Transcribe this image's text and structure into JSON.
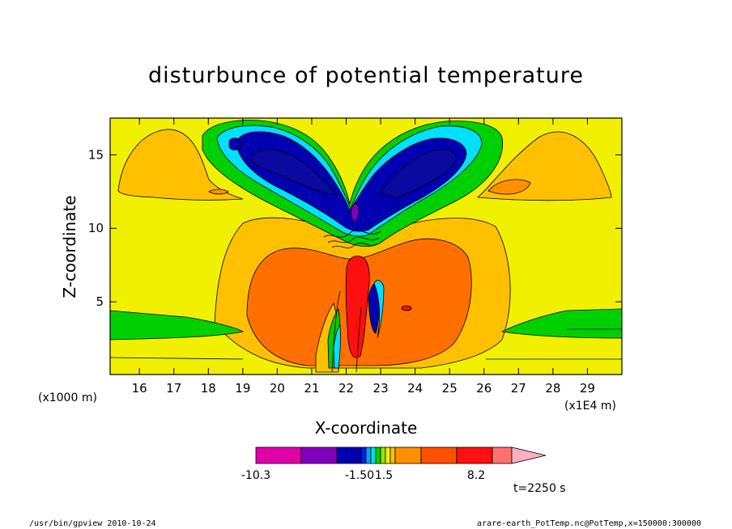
{
  "chart_data": {
    "type": "heatmap",
    "title": "disturbunce of potential temperature",
    "xlabel": "X-coordinate",
    "ylabel": "Z-coordinate",
    "x_unit": "(x1E4 m)",
    "y_unit": "(x1000 m)",
    "xlim": [
      15.15,
      30
    ],
    "ylim": [
      0.05,
      17.5
    ],
    "x_ticks": [
      16,
      17,
      18,
      19,
      20,
      21,
      22,
      23,
      24,
      25,
      26,
      27,
      28,
      29
    ],
    "y_ticks": [
      5,
      10,
      15
    ],
    "colorbar": {
      "tick_labels": [
        "-10.3",
        "-1.50",
        "1.5",
        "8.2"
      ],
      "tick_values": [
        -10.3,
        -1.5,
        1.5,
        8.2
      ],
      "colors": [
        "#e000a8",
        "#8000c0",
        "#0000b0",
        "#0020e0",
        "#00a0ff",
        "#00e0e0",
        "#00d000",
        "#a0e000",
        "#f0f000",
        "#ffc000",
        "#ff9000",
        "#ff5000",
        "#ff1010",
        "#ff7070",
        "#ffb0c0"
      ]
    },
    "colors": {
      "background": "#f0f000",
      "light_orange": "#ffc000",
      "orange": "#ff7000",
      "red": "#ff1010",
      "green": "#00d000",
      "cyan": "#00e0ff",
      "blue": "#0000b0",
      "purple": "#8000c0"
    },
    "annotation": "t=2250 s"
  },
  "footer": {
    "left": "/usr/bin/gpview  2010-10-24",
    "right": "arare-earth_PotTemp.nc@PotTemp,x=150000:300000"
  }
}
